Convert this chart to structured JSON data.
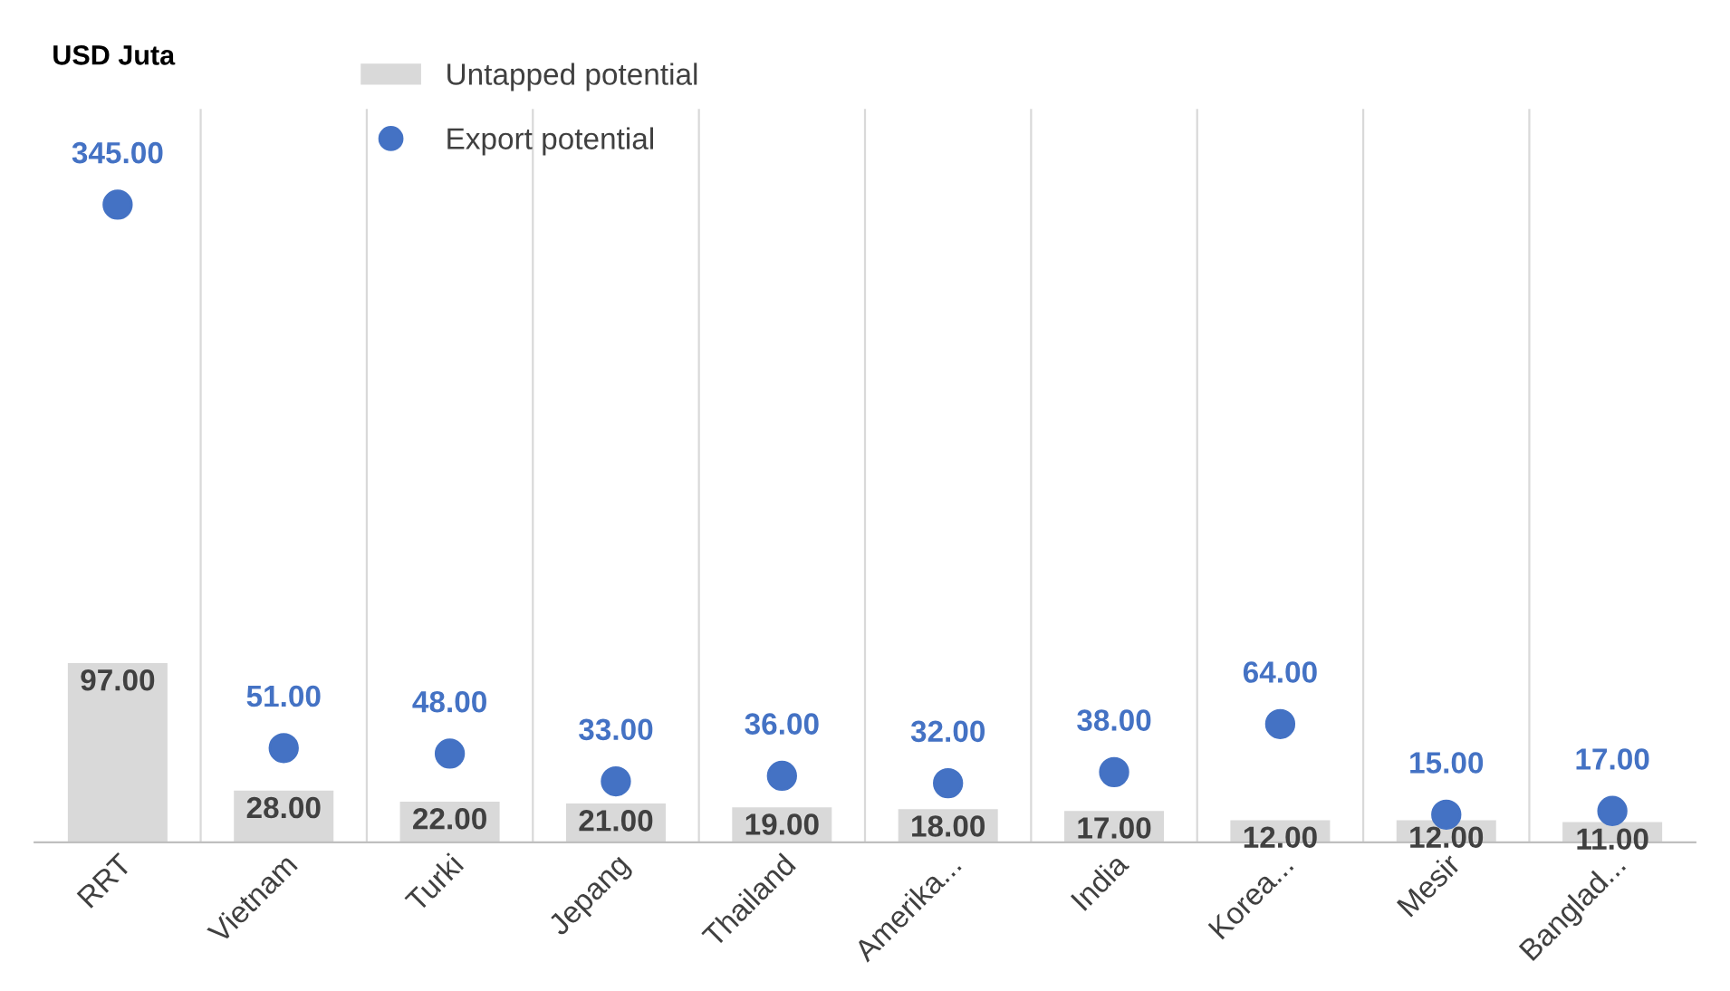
{
  "chart_data": {
    "type": "bar",
    "title": "USD Juta",
    "categories": [
      "RRT",
      "Vietnam",
      "Turki",
      "Jepang",
      "Thailand",
      "Amerika...",
      "India",
      "Korea...",
      "Mesir",
      "Banglad..."
    ],
    "series": [
      {
        "name": "Untapped potential",
        "color": "#d9d9d9",
        "values": [
          97,
          28,
          22,
          21,
          19,
          18,
          17,
          12,
          12,
          11
        ],
        "value_labels": [
          "97.00",
          "28.00",
          "22.00",
          "21.00",
          "19.00",
          "18.00",
          "17.00",
          "12.00",
          "12.00",
          "11.00"
        ]
      },
      {
        "name": "Export potential",
        "type": "scatter",
        "color": "#4472c4",
        "values": [
          345,
          51,
          48,
          33,
          36,
          32,
          38,
          64,
          15,
          17
        ],
        "value_labels": [
          "345.00",
          "51.00",
          "48.00",
          "33.00",
          "36.00",
          "32.00",
          "38.00",
          "64.00",
          "15.00",
          "17.00"
        ]
      }
    ],
    "tick_labels": "x",
    "grid": "x",
    "legend": "top left",
    "marker": "circle"
  }
}
